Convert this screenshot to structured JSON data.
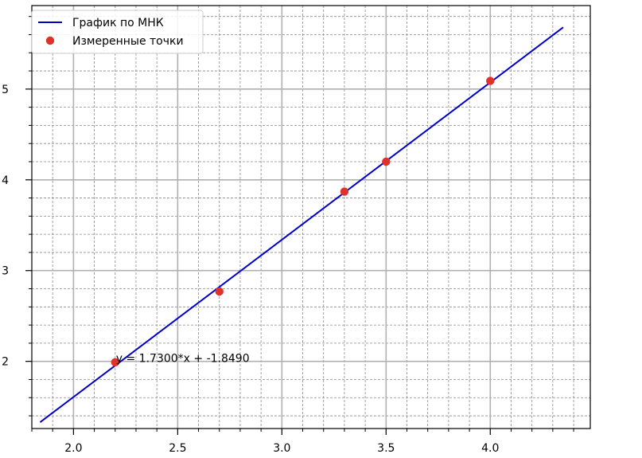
{
  "chart_data": {
    "type": "scatter",
    "title": "",
    "xlabel": "",
    "ylabel": "",
    "xlim": [
      1.8,
      4.48
    ],
    "ylim": [
      1.26,
      5.92
    ],
    "x_ticks": [
      "2.0",
      "2.5",
      "3.0",
      "3.5",
      "4.0"
    ],
    "y_ticks": [
      "2",
      "3",
      "4",
      "5"
    ],
    "grid": {
      "major": true,
      "minor": true
    },
    "legend_position": "top-left",
    "series": [
      {
        "name": "График по МНК",
        "kind": "line",
        "color": "#0000cc",
        "x": [
          1.84,
          4.35
        ],
        "y": [
          1.33,
          5.68
        ]
      },
      {
        "name": "Измеренные точки",
        "kind": "scatter",
        "color": "#e0322a",
        "x": [
          2.2,
          2.7,
          3.3,
          3.5,
          4.0
        ],
        "y": [
          1.99,
          2.77,
          3.87,
          4.2,
          5.09
        ]
      }
    ],
    "annotations": [
      {
        "text": "y = 1.7300*x + -1.8490",
        "x": 2.2,
        "y": 2.0
      }
    ]
  }
}
